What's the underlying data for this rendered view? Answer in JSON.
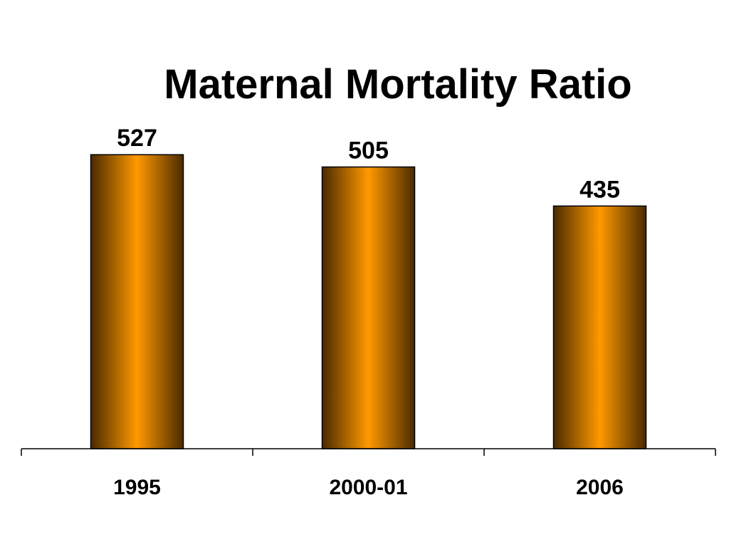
{
  "chart_data": {
    "type": "bar",
    "title": "Maternal Mortality Ratio",
    "categories": [
      "1995",
      "2000-01",
      "2006"
    ],
    "values": [
      527,
      505,
      435
    ],
    "data_labels": [
      "527",
      "505",
      "435"
    ],
    "ylim": [
      0,
      600
    ],
    "grid": false,
    "legend": "none",
    "colors": {
      "bar_center": "#ff9900",
      "bar_edge": "#4a2a00",
      "bar_outline": "#000000",
      "axis": "#000000"
    }
  }
}
